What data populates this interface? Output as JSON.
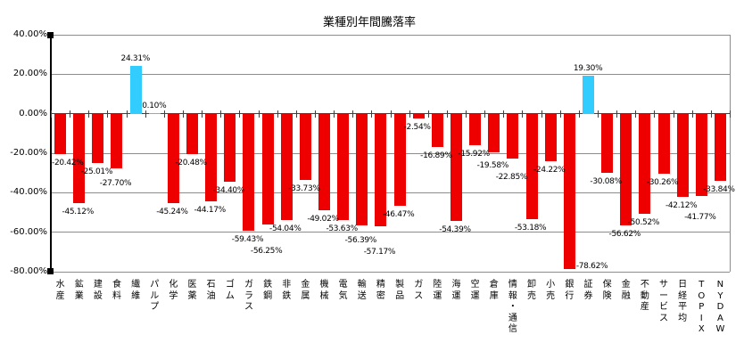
{
  "chart_data": {
    "type": "bar",
    "title": "業種別年間騰落率",
    "categories": [
      "水産",
      "鉱業",
      "建設",
      "食料",
      "繊維",
      "パルプ",
      "化学",
      "医薬",
      "石油",
      "ゴム",
      "ガラス",
      "鉄鋼",
      "非鉄",
      "金属",
      "機械",
      "電気",
      "輸送",
      "精密",
      "製品",
      "ガス",
      "陸運",
      "海運",
      "空運",
      "倉庫",
      "情報・通信",
      "卸売",
      "小売",
      "銀行",
      "証券",
      "保険",
      "金融",
      "不動産",
      "サービス",
      "日経平均",
      "TOPIX",
      "NYDAW"
    ],
    "values": [
      -20.42,
      -45.12,
      -25.01,
      -27.7,
      24.31,
      0.1,
      -45.24,
      -20.48,
      -44.17,
      -34.4,
      -59.43,
      -56.25,
      -54.04,
      -33.73,
      -49.02,
      -53.63,
      -56.39,
      -57.17,
      -46.47,
      -2.54,
      -16.89,
      -54.39,
      -15.92,
      -19.58,
      -22.85,
      -53.18,
      -24.22,
      -78.62,
      19.3,
      -30.08,
      -56.62,
      -50.52,
      -30.26,
      -42.12,
      -41.77,
      -33.84
    ],
    "data_labels": [
      "-20.42%",
      "-45.12%",
      "-25.01%",
      "-27.70%",
      "24.31%",
      "0.10%",
      "-45.24%",
      "-20.48%",
      "-44.17%",
      "-34.40%",
      "-59.43%",
      "-56.25%",
      "-54.04%",
      "-33.73%",
      "-49.02%",
      "-53.63%",
      "-56.39%",
      "-57.17%",
      "-46.47%",
      "-2.54%",
      "-16.89%",
      "-54.39%",
      "-15.92%",
      "-19.58%",
      "-22.85%",
      "-53.18%",
      "-24.22%",
      "-78.62%",
      "19.30%",
      "-30.08%",
      "-56.62%",
      "-50.52%",
      "-30.26%",
      "-42.12%",
      "-41.77%",
      "-33.84%"
    ],
    "ylim": [
      -80,
      40
    ],
    "yticks": [
      40,
      20,
      0,
      -20,
      -40,
      -60,
      -80
    ],
    "ytick_labels": [
      "40.00%",
      "20.00%",
      "0.00%",
      "-20.00%",
      "-40.00%",
      "-60.00%",
      "-80.00%"
    ],
    "positive_color": "#33CCFF",
    "negative_color": "#EE0000",
    "grid": "horizontal",
    "legend": "none"
  }
}
